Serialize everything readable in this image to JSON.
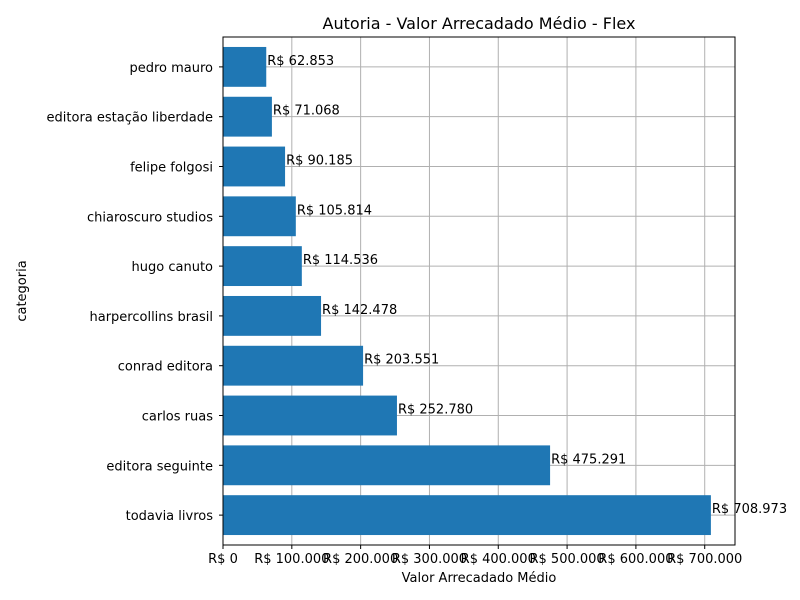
{
  "chart_data": {
    "type": "bar",
    "orientation": "horizontal",
    "title": "Autoria - Valor Arrecadado Médio - Flex",
    "xlabel": "Valor Arrecadado Médio",
    "ylabel": "categoria",
    "categories": [
      "todavia livros",
      "editora seguinte",
      "carlos ruas",
      "conrad editora",
      "harpercollins brasil",
      "hugo canuto",
      "chiaroscuro studios",
      "felipe folgosi",
      "editora estação liberdade",
      "pedro mauro"
    ],
    "values": [
      708973,
      475291,
      252780,
      203551,
      142478,
      114536,
      105814,
      90185,
      71068,
      62853
    ],
    "data_labels": [
      "R$ 708.973",
      "R$ 475.291",
      "R$ 252.780",
      "R$ 203.551",
      "R$ 142.478",
      "R$ 114.536",
      "R$ 105.814",
      "R$ 90.185",
      "R$ 71.068",
      "R$ 62.853"
    ],
    "xticks": [
      0,
      100000,
      200000,
      300000,
      400000,
      500000,
      600000,
      700000
    ],
    "xtick_labels": [
      "R$ 0",
      "R$ 100.000",
      "R$ 200.000",
      "R$ 300.000",
      "R$ 400.000",
      "R$ 500.000",
      "R$ 600.000",
      "R$ 700.000"
    ],
    "xlim": [
      0,
      744000
    ],
    "grid": true,
    "bar_color": "#1f77b4"
  }
}
